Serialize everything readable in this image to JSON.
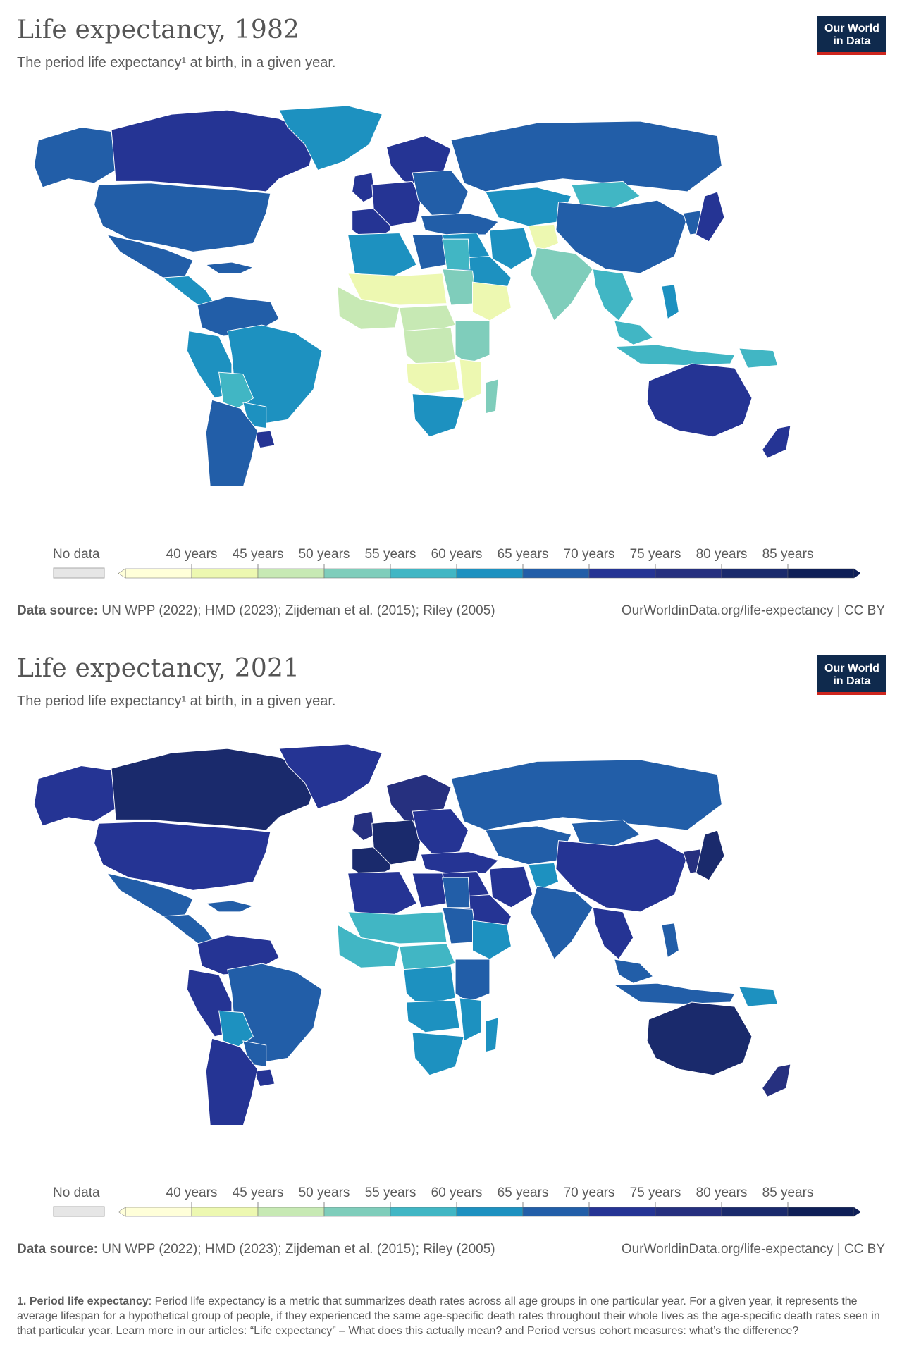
{
  "colors": {
    "no_data": "#e6e6e6",
    "bins": [
      "#ffffd9",
      "#edf8b1",
      "#c7e9b4",
      "#7fcdbb",
      "#41b6c4",
      "#1d91c0",
      "#225ea8",
      "#253494",
      "#26307f",
      "#1a2a6c",
      "#0f1f57"
    ],
    "ocean": "#ffffff",
    "logo_bg": "#0f2a4d",
    "logo_accent": "#ce261e"
  },
  "legend": {
    "no_data_label": "No data",
    "labels": [
      "40 years",
      "45 years",
      "50 years",
      "55 years",
      "60 years",
      "65 years",
      "70 years",
      "75 years",
      "80 years",
      "85 years"
    ]
  },
  "logo": {
    "line1": "Our World",
    "line2": "in Data"
  },
  "panels": [
    {
      "title": "Life expectancy, 1982",
      "subtitle": "The period life expectancy¹ at birth, in a given year.",
      "source_label": "Data source:",
      "source_text": " UN WPP (2022); HMD (2023); Zijdeman et al. (2015); Riley (2005)",
      "url": "OurWorldinData.org/life-expectancy | CC BY",
      "region_bins": {
        "canada": 7,
        "usa": 6,
        "alaska": 6,
        "greenland": 5,
        "mexico": 6,
        "central_america": 5,
        "caribbean": 6,
        "colombia_venezuela": 6,
        "brazil": 5,
        "peru_ecuador": 5,
        "bolivia": 4,
        "paraguay": 5,
        "argentina_chile": 6,
        "uruguay": 7,
        "western_europe": 7,
        "scandinavia": 7,
        "uk_ireland": 7,
        "iberia": 7,
        "eastern_europe": 6,
        "russia": 6,
        "turkey_caucasus": 6,
        "middle_east": 5,
        "arabia": 5,
        "central_asia": 5,
        "iran": 5,
        "afghanistan": 1,
        "south_asia": 3,
        "china": 6,
        "mongolia": 4,
        "japan": 7,
        "korea": 6,
        "southeast_asia": 4,
        "indochina": 4,
        "indonesia": 4,
        "philippines": 5,
        "png": 4,
        "australia": 7,
        "new_zealand": 7,
        "north_africa": 5,
        "libya": 6,
        "egypt": 4,
        "sahel": 1,
        "west_africa": 2,
        "ethiopia_horn": 1,
        "central_africa": 2,
        "congo": 2,
        "east_africa": 3,
        "angola_zambia": 1,
        "mozambique": 1,
        "southern_africa": 5,
        "madagascar": 3,
        "sudan": 3
      }
    },
    {
      "title": "Life expectancy, 2021",
      "subtitle": "The period life expectancy¹ at birth, in a given year.",
      "source_label": "Data source:",
      "source_text": " UN WPP (2022); HMD (2023); Zijdeman et al. (2015); Riley (2005)",
      "url": "OurWorldinData.org/life-expectancy | CC BY",
      "region_bins": {
        "canada": 9,
        "usa": 7,
        "alaska": 7,
        "greenland": 7,
        "mexico": 6,
        "central_america": 6,
        "caribbean": 6,
        "colombia_venezuela": 7,
        "brazil": 6,
        "peru_ecuador": 7,
        "bolivia": 5,
        "paraguay": 6,
        "argentina_chile": 7,
        "uruguay": 7,
        "western_europe": 9,
        "scandinavia": 8,
        "uk_ireland": 8,
        "iberia": 9,
        "eastern_europe": 7,
        "russia": 6,
        "turkey_caucasus": 7,
        "middle_east": 7,
        "arabia": 7,
        "central_asia": 6,
        "iran": 7,
        "afghanistan": 5,
        "south_asia": 6,
        "china": 7,
        "mongolia": 6,
        "japan": 9,
        "korea": 8,
        "southeast_asia": 6,
        "indochina": 7,
        "indonesia": 6,
        "philippines": 6,
        "png": 5,
        "australia": 9,
        "new_zealand": 8,
        "north_africa": 7,
        "libya": 7,
        "egypt": 6,
        "sahel": 4,
        "west_africa": 4,
        "ethiopia_horn": 5,
        "central_africa": 4,
        "congo": 5,
        "east_africa": 6,
        "angola_zambia": 5,
        "mozambique": 5,
        "southern_africa": 5,
        "madagascar": 5,
        "sudan": 6
      }
    }
  ],
  "footnote": {
    "label": "1. Period life expectancy",
    "text": ": Period life expectancy is a metric that summarizes death rates across all age groups in one particular year. For a given year, it represents the average lifespan for a hypothetical group of people, if they experienced the same age-specific death rates throughout their whole lives as the age-specific death rates seen in that particular year. Learn more in our articles: “Life expectancy” – What does this actually mean? and Period versus cohort measures: what’s the difference?"
  }
}
